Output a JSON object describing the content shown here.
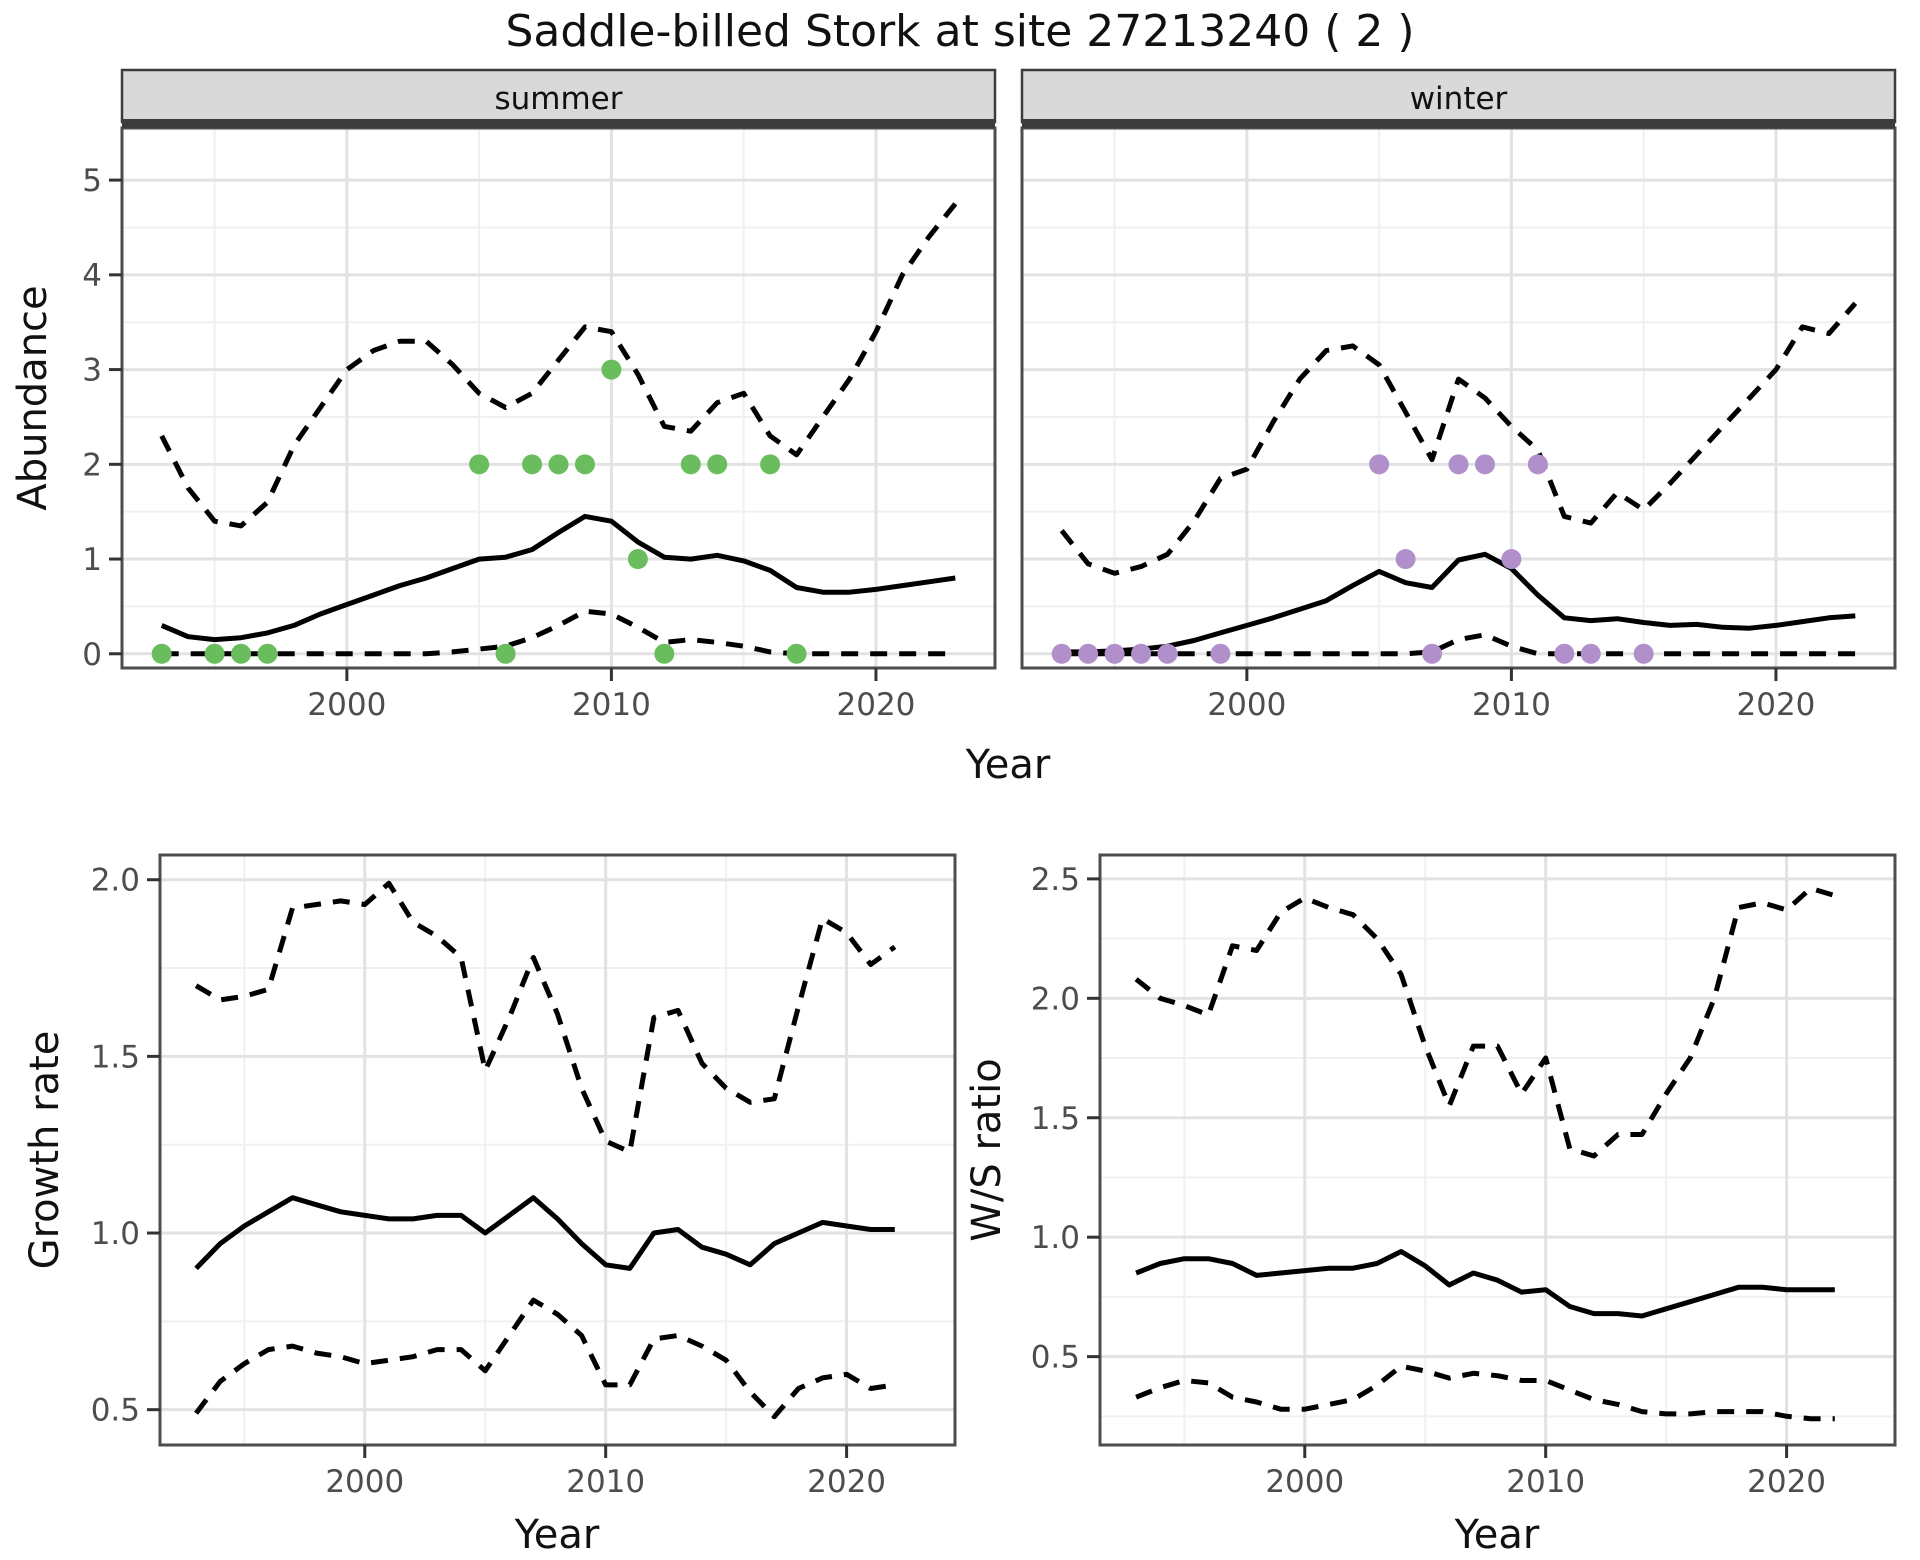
{
  "title": "Saddle-billed Stork at site 27213240 ( 2 )",
  "colors": {
    "summer_points": "#6ABD5C",
    "winter_points": "#B18FCB",
    "line": "#000000",
    "strip_bg": "#D9D9D9",
    "strip_border": "#3C3C3C",
    "panel_border": "#4D4D4D",
    "grid_major": "#E2E2E2",
    "grid_minor": "#F0F0F0",
    "tick_text": "#4D4D4D",
    "axis_text": "#111111",
    "background": "#FFFFFF"
  },
  "chart_data": [
    {
      "type": "line",
      "name": "abundance-summer",
      "facet_label": "summer",
      "ylabel": "Abundance",
      "xlabel": "Year",
      "xlim": [
        1991.5,
        2024.5
      ],
      "ylim": [
        -0.15,
        5.55
      ],
      "x_ticks": [
        2000,
        2010,
        2020
      ],
      "x_tick_labels": [
        "2000",
        "2010",
        "2020"
      ],
      "x_minor_ticks": [
        1995,
        2005,
        2015
      ],
      "y_ticks": [
        0,
        1,
        2,
        3,
        4,
        5
      ],
      "y_tick_labels": [
        "0",
        "1",
        "2",
        "3",
        "4",
        "5"
      ],
      "y_minor_ticks": [
        0.5,
        1.5,
        2.5,
        3.5,
        4.5
      ],
      "x": [
        1993,
        1994,
        1995,
        1996,
        1997,
        1998,
        1999,
        2000,
        2001,
        2002,
        2003,
        2004,
        2005,
        2006,
        2007,
        2008,
        2009,
        2010,
        2011,
        2012,
        2013,
        2014,
        2015,
        2016,
        2017,
        2018,
        2019,
        2020,
        2021,
        2022,
        2023
      ],
      "series": [
        {
          "name": "upper_ci",
          "style": "dashed",
          "values": [
            2.3,
            1.75,
            1.4,
            1.35,
            1.6,
            2.2,
            2.6,
            3.0,
            3.2,
            3.3,
            3.3,
            3.05,
            2.75,
            2.6,
            2.75,
            3.1,
            3.45,
            3.4,
            2.95,
            2.4,
            2.35,
            2.65,
            2.75,
            2.3,
            2.1,
            2.5,
            2.9,
            3.4,
            4.0,
            4.4,
            4.75
          ]
        },
        {
          "name": "lower_ci",
          "style": "dashed",
          "values": [
            0,
            0,
            0,
            0,
            0,
            0,
            0,
            0,
            0,
            0,
            0,
            0.02,
            0.05,
            0.08,
            0.17,
            0.3,
            0.45,
            0.42,
            0.28,
            0.12,
            0.15,
            0.12,
            0.08,
            0.02,
            0,
            0,
            0,
            0,
            0,
            0,
            0
          ]
        },
        {
          "name": "fitted",
          "style": "solid",
          "values": [
            0.3,
            0.18,
            0.15,
            0.17,
            0.22,
            0.3,
            0.42,
            0.52,
            0.62,
            0.72,
            0.8,
            0.9,
            1.0,
            1.02,
            1.1,
            1.28,
            1.45,
            1.4,
            1.18,
            1.02,
            1.0,
            1.04,
            0.98,
            0.88,
            0.7,
            0.65,
            0.65,
            0.68,
            0.72,
            0.76,
            0.8
          ]
        }
      ],
      "points": {
        "color": "#6ABD5C",
        "x": [
          1993,
          1995,
          1996,
          1997,
          2005,
          2006,
          2007,
          2008,
          2009,
          2010,
          2011,
          2012,
          2013,
          2014,
          2016,
          2017
        ],
        "y": [
          0,
          0,
          0,
          0,
          2,
          0,
          2,
          2,
          2,
          3,
          1,
          0,
          2,
          2,
          2,
          0
        ]
      }
    },
    {
      "type": "line",
      "name": "abundance-winter",
      "facet_label": "winter",
      "ylabel": "",
      "xlabel": "Year",
      "xlim": [
        1991.5,
        2024.5
      ],
      "ylim": [
        -0.15,
        5.55
      ],
      "x_ticks": [
        2000,
        2010,
        2020
      ],
      "x_tick_labels": [
        "2000",
        "2010",
        "2020"
      ],
      "x_minor_ticks": [
        1995,
        2005,
        2015
      ],
      "y_ticks": [
        0,
        1,
        2,
        3,
        4,
        5
      ],
      "y_tick_labels": [
        "0",
        "1",
        "2",
        "3",
        "4",
        "5"
      ],
      "y_minor_ticks": [
        0.5,
        1.5,
        2.5,
        3.5,
        4.5
      ],
      "x": [
        1993,
        1994,
        1995,
        1996,
        1997,
        1998,
        1999,
        2000,
        2001,
        2002,
        2003,
        2004,
        2005,
        2006,
        2007,
        2008,
        2009,
        2010,
        2011,
        2012,
        2013,
        2014,
        2015,
        2016,
        2017,
        2018,
        2019,
        2020,
        2021,
        2022,
        2023
      ],
      "series": [
        {
          "name": "upper_ci",
          "style": "dashed",
          "values": [
            1.3,
            0.95,
            0.85,
            0.92,
            1.05,
            1.4,
            1.85,
            1.95,
            2.45,
            2.9,
            3.2,
            3.25,
            3.05,
            2.55,
            2.05,
            2.9,
            2.7,
            2.4,
            2.15,
            1.45,
            1.38,
            1.7,
            1.52,
            1.8,
            2.1,
            2.4,
            2.7,
            3.0,
            3.45,
            3.38,
            3.7
          ]
        },
        {
          "name": "lower_ci",
          "style": "dashed",
          "values": [
            0,
            0,
            0,
            0,
            0,
            0,
            0,
            0,
            0,
            0,
            0,
            0,
            0,
            0,
            0.02,
            0.15,
            0.2,
            0.08,
            0,
            0,
            0,
            0,
            0,
            0,
            0,
            0,
            0,
            0,
            0,
            0,
            0
          ]
        },
        {
          "name": "fitted",
          "style": "solid",
          "values": [
            0.02,
            0.02,
            0.03,
            0.05,
            0.08,
            0.14,
            0.22,
            0.3,
            0.38,
            0.47,
            0.56,
            0.72,
            0.87,
            0.75,
            0.7,
            0.99,
            1.05,
            0.9,
            0.62,
            0.38,
            0.35,
            0.37,
            0.33,
            0.3,
            0.31,
            0.28,
            0.27,
            0.3,
            0.34,
            0.38,
            0.4
          ]
        }
      ],
      "points": {
        "color": "#B18FCB",
        "x": [
          1993,
          1994,
          1995,
          1996,
          1997,
          1999,
          2005,
          2006,
          2007,
          2008,
          2009,
          2010,
          2011,
          2012,
          2013,
          2015
        ],
        "y": [
          0,
          0,
          0,
          0,
          0,
          0,
          2,
          1,
          0,
          2,
          2,
          1,
          2,
          0,
          0,
          0
        ]
      }
    },
    {
      "type": "line",
      "name": "growth-rate",
      "facet_label": "",
      "ylabel": "Growth rate",
      "xlabel": "Year",
      "xlim": [
        1991.5,
        2024.5
      ],
      "ylim": [
        0.4,
        2.07
      ],
      "x_ticks": [
        2000,
        2010,
        2020
      ],
      "x_tick_labels": [
        "2000",
        "2010",
        "2020"
      ],
      "x_minor_ticks": [
        1995,
        2005,
        2015
      ],
      "y_ticks": [
        0.5,
        1.0,
        1.5,
        2.0
      ],
      "y_tick_labels": [
        "0.5",
        "1.0",
        "1.5",
        "2.0"
      ],
      "y_minor_ticks": [
        0.75,
        1.25,
        1.75
      ],
      "x": [
        1993,
        1994,
        1995,
        1996,
        1997,
        1998,
        1999,
        2000,
        2001,
        2002,
        2003,
        2004,
        2005,
        2006,
        2007,
        2008,
        2009,
        2010,
        2011,
        2012,
        2013,
        2014,
        2015,
        2016,
        2017,
        2018,
        2019,
        2020,
        2021,
        2022
      ],
      "series": [
        {
          "name": "upper_ci",
          "style": "dashed",
          "values": [
            1.7,
            1.66,
            1.67,
            1.69,
            1.92,
            1.93,
            1.94,
            1.93,
            1.99,
            1.88,
            1.84,
            1.78,
            1.46,
            1.61,
            1.78,
            1.62,
            1.41,
            1.26,
            1.23,
            1.61,
            1.63,
            1.48,
            1.41,
            1.37,
            1.38,
            1.64,
            1.89,
            1.85,
            1.76,
            1.81
          ]
        },
        {
          "name": "lower_ci",
          "style": "dashed",
          "values": [
            0.49,
            0.58,
            0.63,
            0.67,
            0.68,
            0.66,
            0.65,
            0.63,
            0.64,
            0.65,
            0.67,
            0.67,
            0.61,
            0.71,
            0.81,
            0.77,
            0.71,
            0.57,
            0.57,
            0.7,
            0.71,
            0.68,
            0.64,
            0.55,
            0.48,
            0.56,
            0.59,
            0.6,
            0.56,
            0.57
          ]
        },
        {
          "name": "fitted",
          "style": "solid",
          "values": [
            0.9,
            0.97,
            1.02,
            1.06,
            1.1,
            1.08,
            1.06,
            1.05,
            1.04,
            1.04,
            1.05,
            1.05,
            1.0,
            1.05,
            1.1,
            1.04,
            0.97,
            0.91,
            0.9,
            1.0,
            1.01,
            0.96,
            0.94,
            0.91,
            0.97,
            1.0,
            1.03,
            1.02,
            1.01,
            1.01
          ]
        }
      ],
      "points": null
    },
    {
      "type": "line",
      "name": "ws-ratio",
      "facet_label": "",
      "ylabel": "W/S ratio",
      "xlabel": "Year",
      "xlim": [
        1991.5,
        2024.5
      ],
      "ylim": [
        0.13,
        2.6
      ],
      "x_ticks": [
        2000,
        2010,
        2020
      ],
      "x_tick_labels": [
        "2000",
        "2010",
        "2020"
      ],
      "x_minor_ticks": [
        1995,
        2005,
        2015
      ],
      "y_ticks": [
        0.5,
        1.0,
        1.5,
        2.0,
        2.5
      ],
      "y_tick_labels": [
        "0.5",
        "1.0",
        "1.5",
        "2.0",
        "2.5"
      ],
      "y_minor_ticks": [
        0.25,
        0.75,
        1.25,
        1.75,
        2.25
      ],
      "x": [
        1993,
        1994,
        1995,
        1996,
        1997,
        1998,
        1999,
        2000,
        2001,
        2002,
        2003,
        2004,
        2005,
        2006,
        2007,
        2008,
        2009,
        2010,
        2011,
        2012,
        2013,
        2014,
        2015,
        2016,
        2017,
        2018,
        2019,
        2020,
        2021,
        2022
      ],
      "series": [
        {
          "name": "upper_ci",
          "style": "dashed",
          "values": [
            2.08,
            2.0,
            1.97,
            1.93,
            2.22,
            2.2,
            2.36,
            2.42,
            2.38,
            2.35,
            2.25,
            2.1,
            1.8,
            1.55,
            1.8,
            1.8,
            1.6,
            1.75,
            1.37,
            1.34,
            1.43,
            1.43,
            1.6,
            1.75,
            2.0,
            2.38,
            2.4,
            2.37,
            2.46,
            2.43
          ]
        },
        {
          "name": "lower_ci",
          "style": "dashed",
          "values": [
            0.33,
            0.37,
            0.4,
            0.39,
            0.33,
            0.31,
            0.28,
            0.28,
            0.3,
            0.32,
            0.38,
            0.46,
            0.44,
            0.41,
            0.43,
            0.42,
            0.4,
            0.4,
            0.36,
            0.32,
            0.3,
            0.27,
            0.26,
            0.26,
            0.27,
            0.27,
            0.27,
            0.25,
            0.24,
            0.24
          ]
        },
        {
          "name": "fitted",
          "style": "solid",
          "values": [
            0.85,
            0.89,
            0.91,
            0.91,
            0.89,
            0.84,
            0.85,
            0.86,
            0.87,
            0.87,
            0.89,
            0.94,
            0.88,
            0.8,
            0.85,
            0.82,
            0.77,
            0.78,
            0.71,
            0.68,
            0.68,
            0.67,
            0.7,
            0.73,
            0.76,
            0.79,
            0.79,
            0.78,
            0.78,
            0.78
          ]
        }
      ],
      "points": null
    }
  ]
}
